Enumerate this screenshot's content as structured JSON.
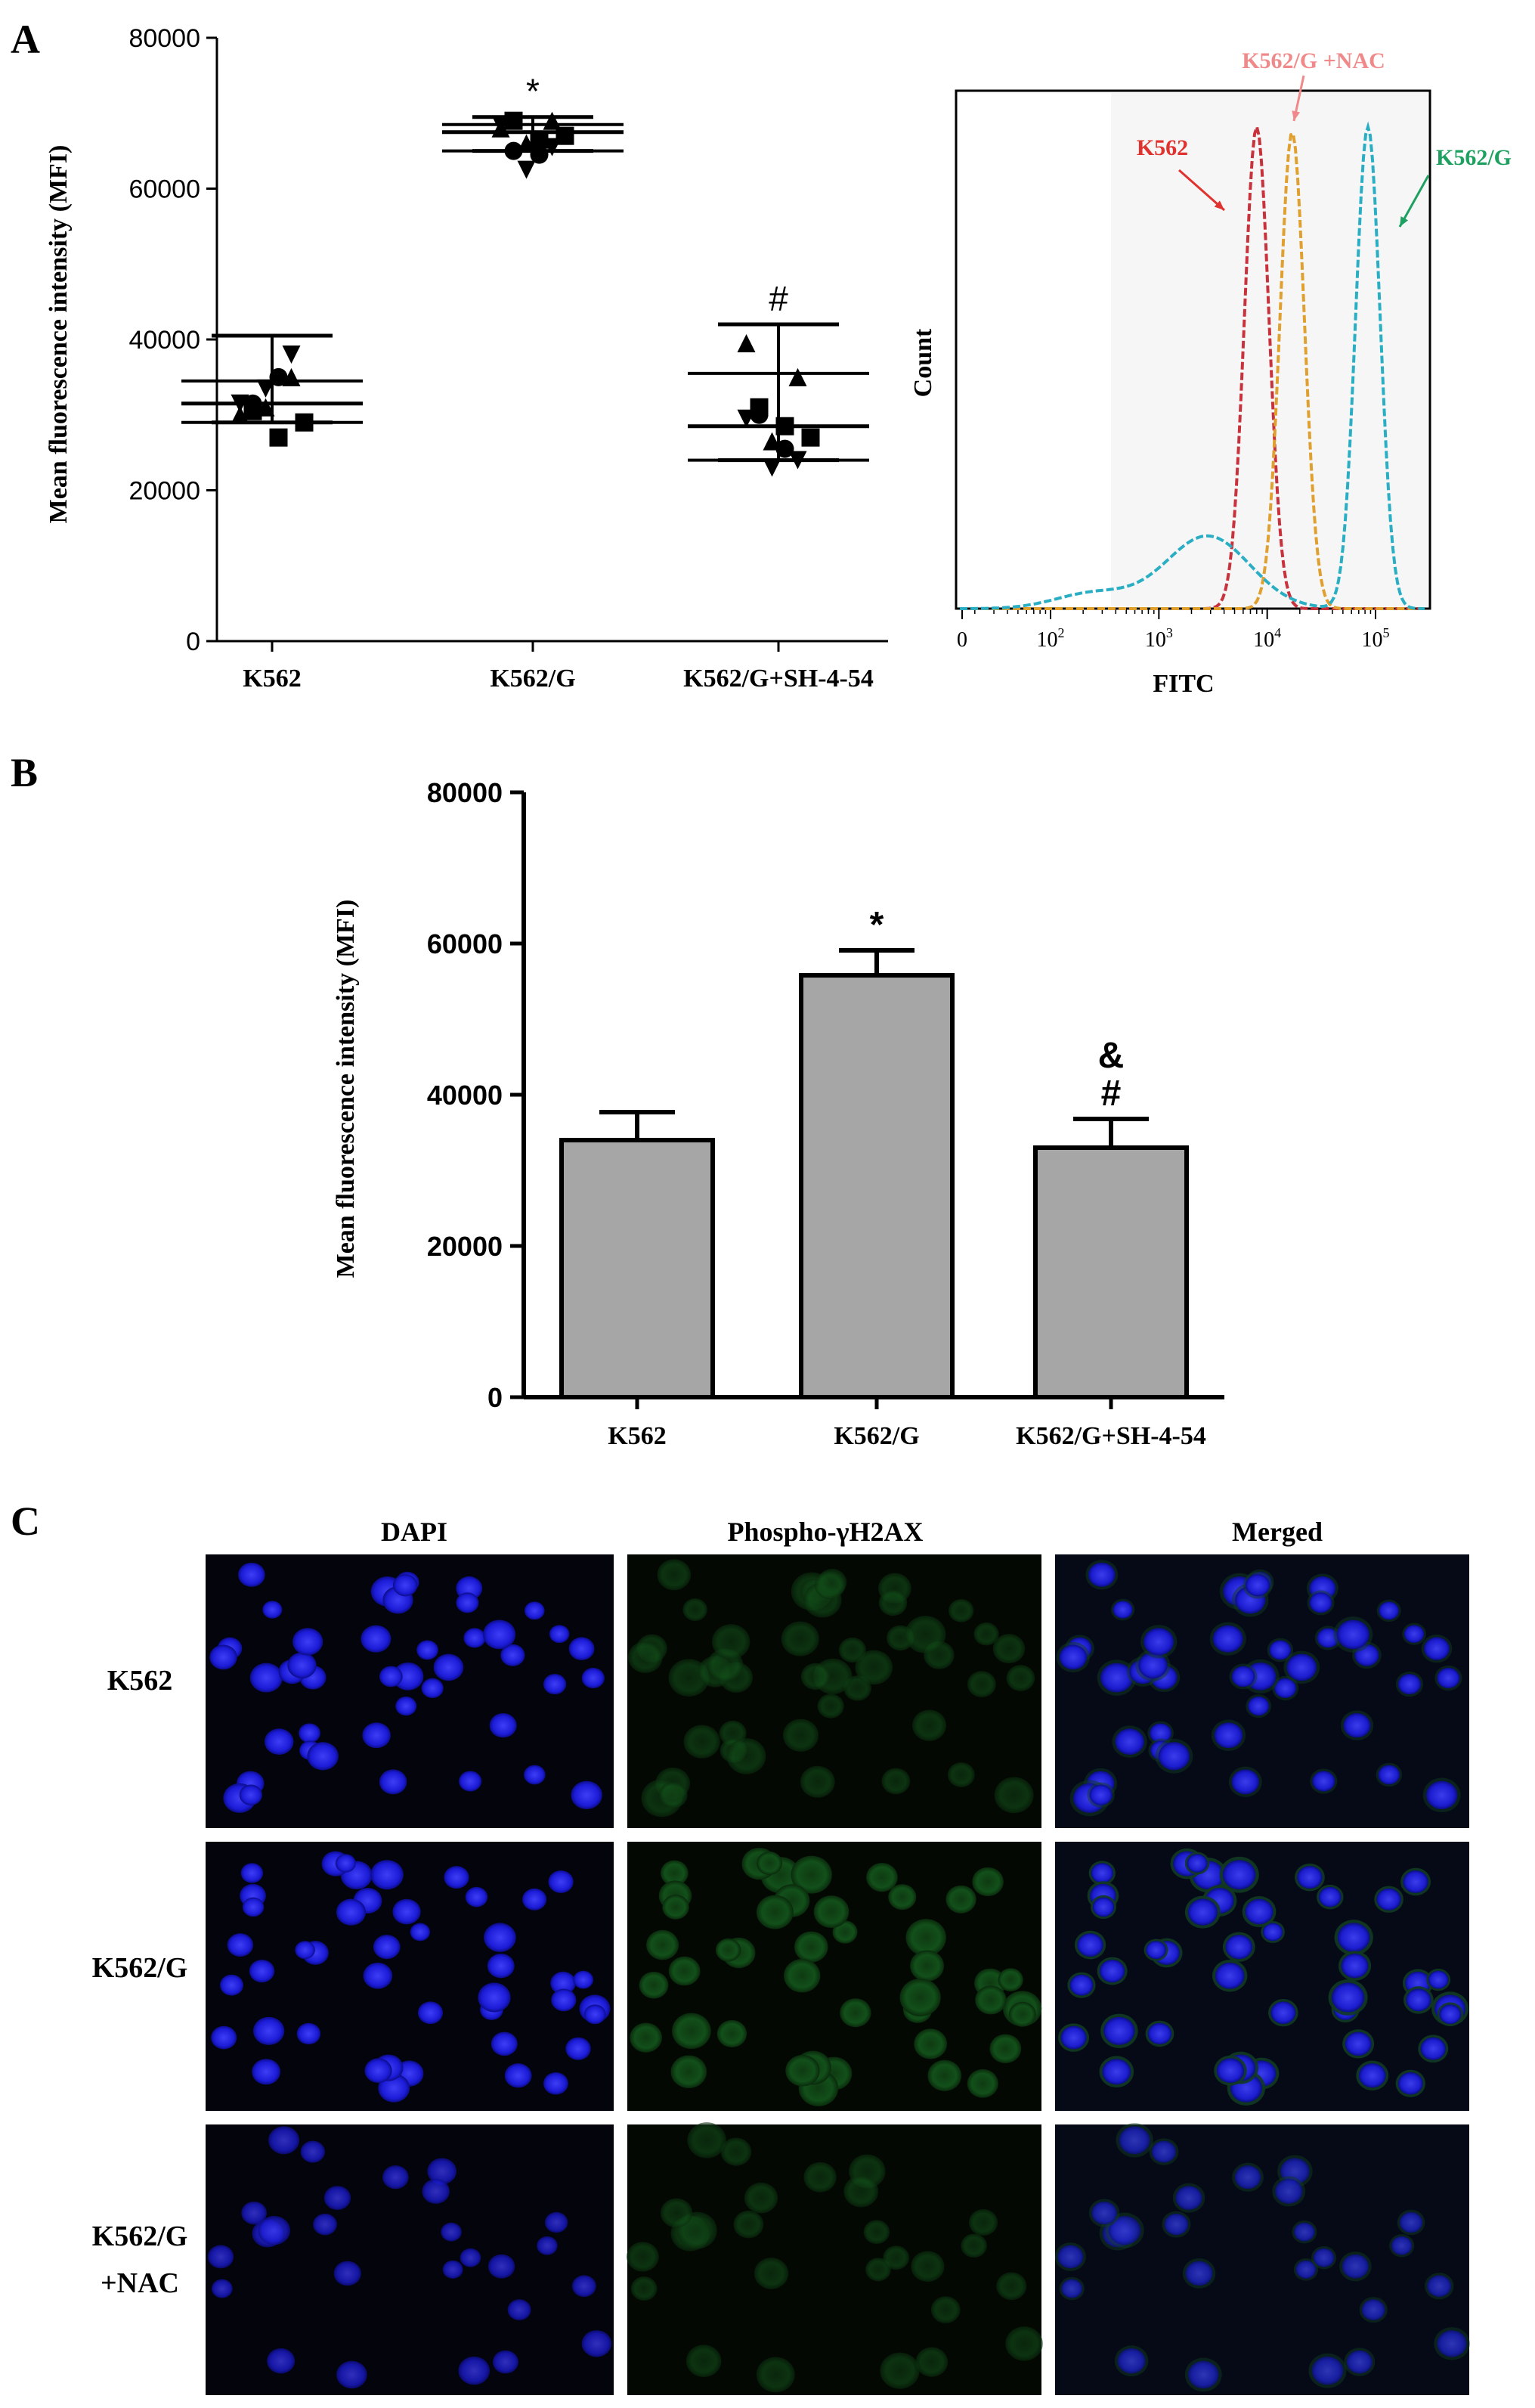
{
  "panels": {
    "a": {
      "label": "A"
    },
    "b": {
      "label": "B"
    },
    "c": {
      "label": "C"
    }
  },
  "chart_data": [
    {
      "type": "scatter",
      "panel": "A",
      "ylabel": "Mean fluorescence intensity (MFI)",
      "ylim": [
        0,
        80000
      ],
      "yticks": [
        0,
        20000,
        40000,
        60000,
        80000
      ],
      "categories": [
        "K562",
        "K562/G",
        "K562/G+SH-4-54"
      ],
      "points": [
        [
          31500,
          30500,
          31000,
          35000,
          38000,
          29000,
          30000,
          31500,
          33500,
          27000,
          35000
        ],
        [
          68500,
          69000,
          66000,
          64500,
          65500,
          67000,
          68000,
          65000,
          62500,
          66500,
          69000
        ],
        [
          29500,
          31000,
          26500,
          25500,
          24000,
          27000,
          39500,
          30000,
          23000,
          28500,
          35000
        ]
      ],
      "median": [
        31500,
        67500,
        28500
      ],
      "sd_low": [
        29000,
        65000,
        24000
      ],
      "sd_high": [
        34500,
        68500,
        35500
      ],
      "range_low": [
        29000,
        65000,
        24000
      ],
      "range_high": [
        40500,
        69500,
        42000
      ],
      "annotations": [
        "",
        "*",
        "#"
      ],
      "grid": false
    },
    {
      "type": "line",
      "panel": "A-histogram",
      "xlabel": "FITC",
      "ylabel": "Count",
      "xscale": "log",
      "xlim": [
        1,
        300000
      ],
      "xticks": [
        "0",
        "10",
        "10",
        "10",
        "10"
      ],
      "xtick_exponents": [
        "",
        "2",
        "3",
        "4",
        "5"
      ],
      "series": [
        {
          "name": "K562",
          "color": "#c8323c",
          "mode": 8000,
          "peak": 0.93
        },
        {
          "name": "K562/G +NAC",
          "color": "#e0a030",
          "mode": 17000,
          "peak": 0.92
        },
        {
          "name": "K562/G",
          "color": "#2aaec4",
          "mode": 85000,
          "peak": 0.93
        }
      ],
      "legend_colors": {
        "K562": "#e0322e",
        "K562/G +NAC": "#f08a8a",
        "K562/G": "#1ea060"
      },
      "grid": false
    },
    {
      "type": "bar",
      "panel": "B",
      "ylabel": "Mean fluorescence intensity (MFI)",
      "ylim": [
        0,
        80000
      ],
      "yticks": [
        0,
        20000,
        40000,
        60000,
        80000
      ],
      "categories": [
        "K562",
        "K562/G",
        "K562/G+SH-4-54"
      ],
      "values": [
        34000,
        55800,
        33000
      ],
      "errors": [
        3700,
        3300,
        3800
      ],
      "annotations": [
        "",
        "*",
        "&\n#"
      ],
      "bar_color": "#a6a6a6",
      "grid": false
    }
  ],
  "micrographs": {
    "columns": [
      "DAPI",
      "Phospho-γH2AX",
      "Merged"
    ],
    "rows": [
      "K562",
      "K562/G",
      "K562/G\n+NAC"
    ]
  }
}
